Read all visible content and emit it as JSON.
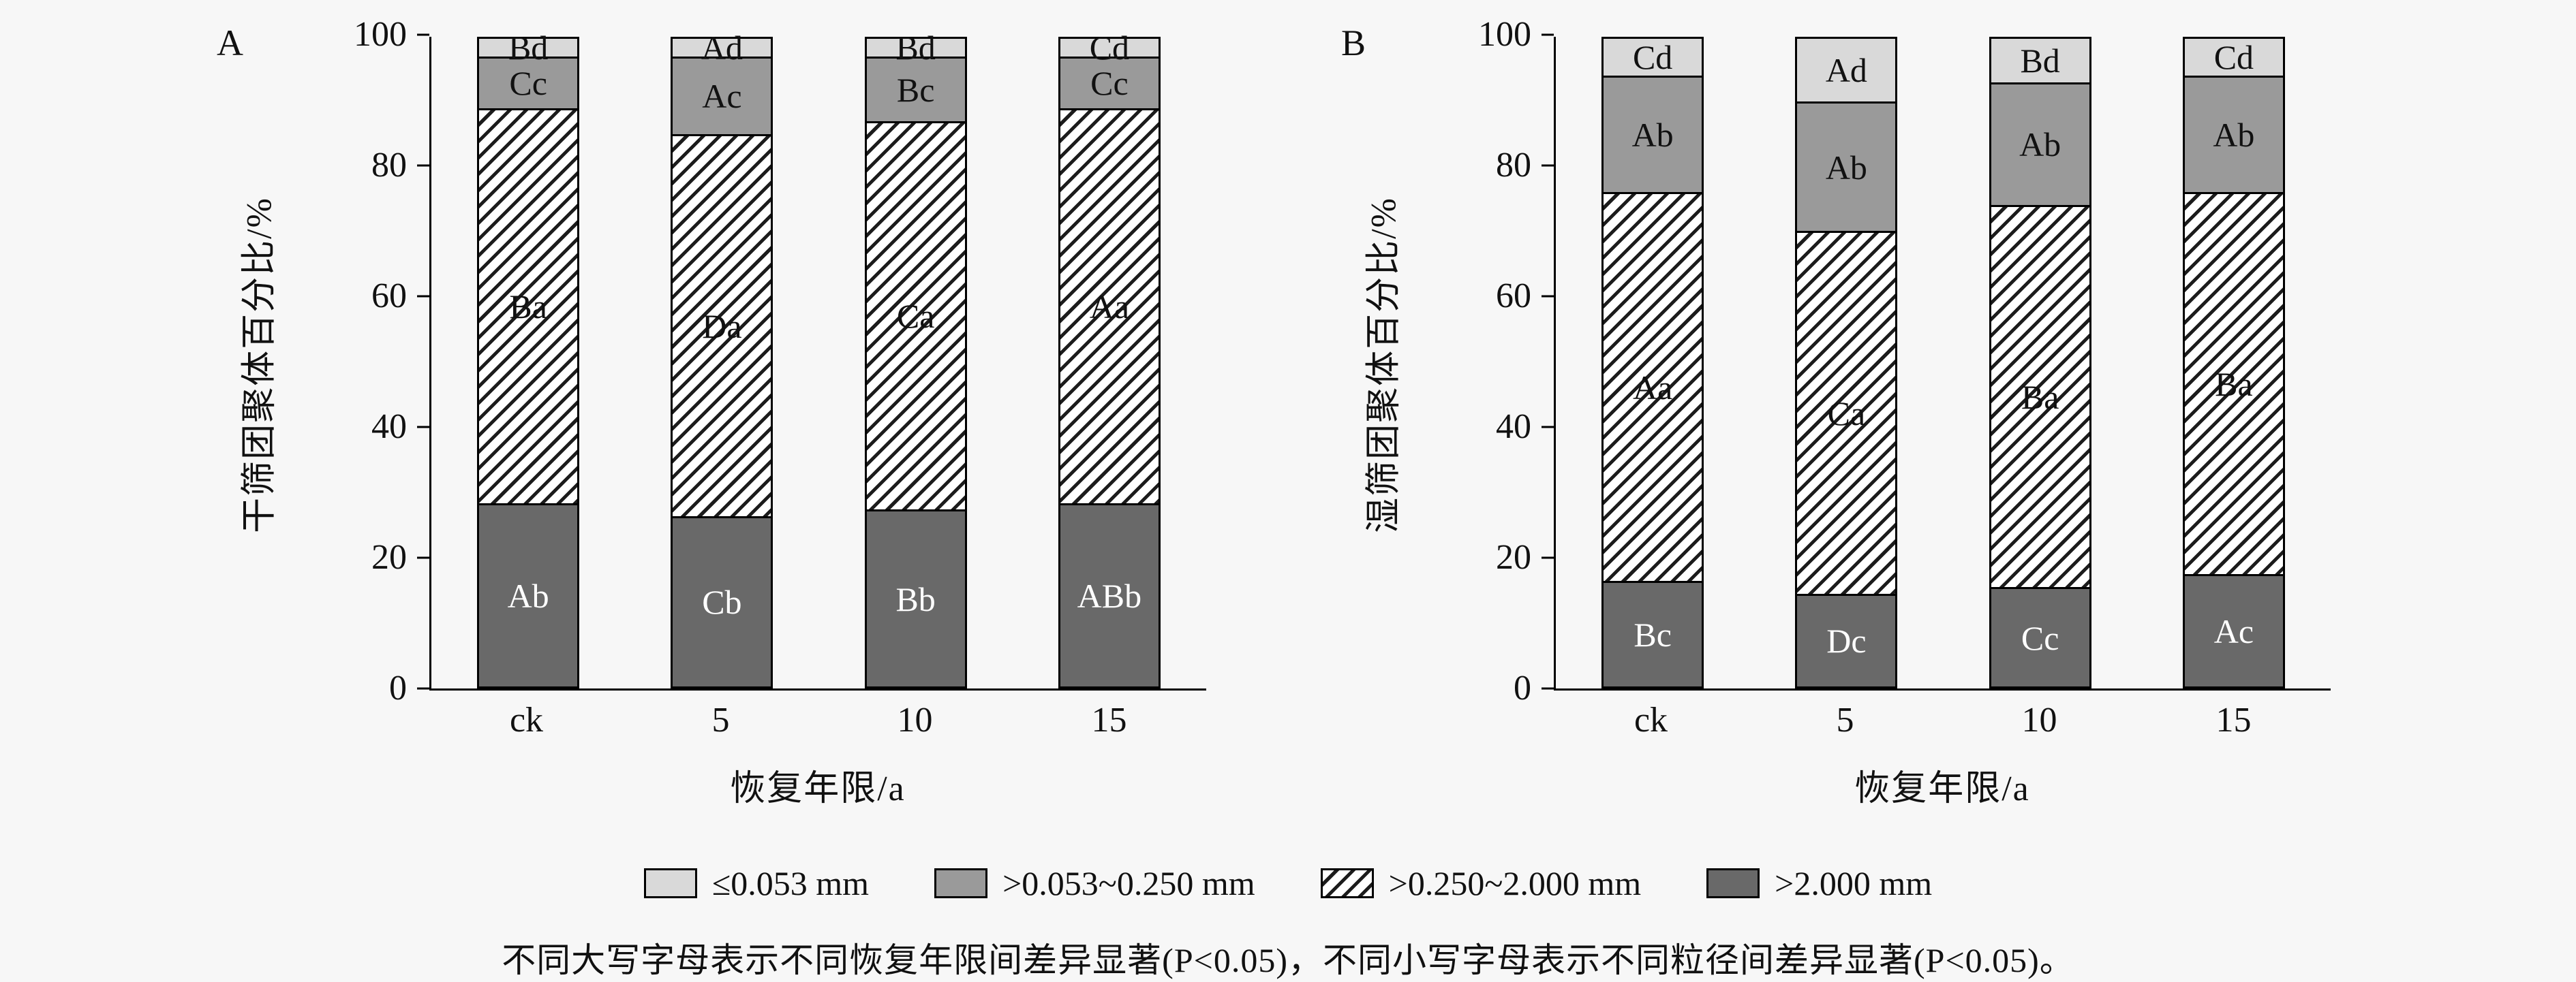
{
  "figure": {
    "background": "#f7f7f7",
    "footnote": "不同大写字母表示不同恢复年限间差异显著(P<0.05)，不同小写字母表示不同粒径间差异显著(P<0.05)。"
  },
  "colors": {
    "dark": "#696969",
    "mid": "#9a9a9a",
    "light": "#d9d9d9",
    "hatch_bg": "#ffffff",
    "hatch_line": "#1c1c1c",
    "axis": "#000000",
    "label_on_dark": "#ffffff",
    "label_on_light": "#111111"
  },
  "legend": [
    {
      "label": "≤0.053 mm",
      "style": "light"
    },
    {
      "label": ">0.053~0.250 mm",
      "style": "mid"
    },
    {
      "label": ">0.250~2.000 mm",
      "style": "hatch"
    },
    {
      "label": ">2.000 mm",
      "style": "dark"
    }
  ],
  "chart_data": [
    {
      "type": "bar",
      "stacked": true,
      "panel_label": "A",
      "ylabel": "干筛团聚体百分比/%",
      "xlabel": "恢复年限/a",
      "ylim": [
        0,
        100
      ],
      "yticks": [
        0,
        20,
        40,
        60,
        80,
        100
      ],
      "categories": [
        "ck",
        "5",
        "10",
        "15"
      ],
      "series": [
        {
          "name": ">2.000 mm",
          "style": "dark",
          "values": [
            28,
            26,
            27,
            28
          ],
          "labels": [
            "Ab",
            "Cb",
            "Bb",
            "ABb"
          ]
        },
        {
          "name": ">0.250~2.000 mm",
          "style": "hatch",
          "values": [
            61,
            59,
            60,
            61
          ],
          "labels": [
            "Ba",
            "Da",
            "Ca",
            "Aa"
          ]
        },
        {
          "name": ">0.053~0.250 mm",
          "style": "mid",
          "values": [
            8,
            12,
            10,
            8
          ],
          "labels": [
            "Cc",
            "Ac",
            "Bc",
            "Cc"
          ]
        },
        {
          "name": "≤0.053 mm",
          "style": "light",
          "values": [
            3,
            3,
            3,
            3
          ],
          "labels": [
            "Bd",
            "Ad",
            "Bd",
            "Cd"
          ]
        }
      ]
    },
    {
      "type": "bar",
      "stacked": true,
      "panel_label": "B",
      "ylabel": "湿筛团聚体百分比/%",
      "xlabel": "恢复年限/a",
      "ylim": [
        0,
        100
      ],
      "yticks": [
        0,
        20,
        40,
        60,
        80,
        100
      ],
      "categories": [
        "ck",
        "5",
        "10",
        "15"
      ],
      "series": [
        {
          "name": ">2.000 mm",
          "style": "dark",
          "values": [
            16,
            14,
            15,
            17
          ],
          "labels": [
            "Bc",
            "Dc",
            "Cc",
            "Ac"
          ]
        },
        {
          "name": ">0.250~2.000 mm",
          "style": "hatch",
          "values": [
            60,
            56,
            59,
            59
          ],
          "labels": [
            "Aa",
            "Ca",
            "Ba",
            "Ba"
          ]
        },
        {
          "name": ">0.053~0.250 mm",
          "style": "mid",
          "values": [
            18,
            20,
            19,
            18
          ],
          "labels": [
            "Ab",
            "Ab",
            "Ab",
            "Ab"
          ]
        },
        {
          "name": "≤0.053 mm",
          "style": "light",
          "values": [
            6,
            10,
            7,
            6
          ],
          "labels": [
            "Cd",
            "Ad",
            "Bd",
            "Cd"
          ]
        }
      ]
    }
  ]
}
